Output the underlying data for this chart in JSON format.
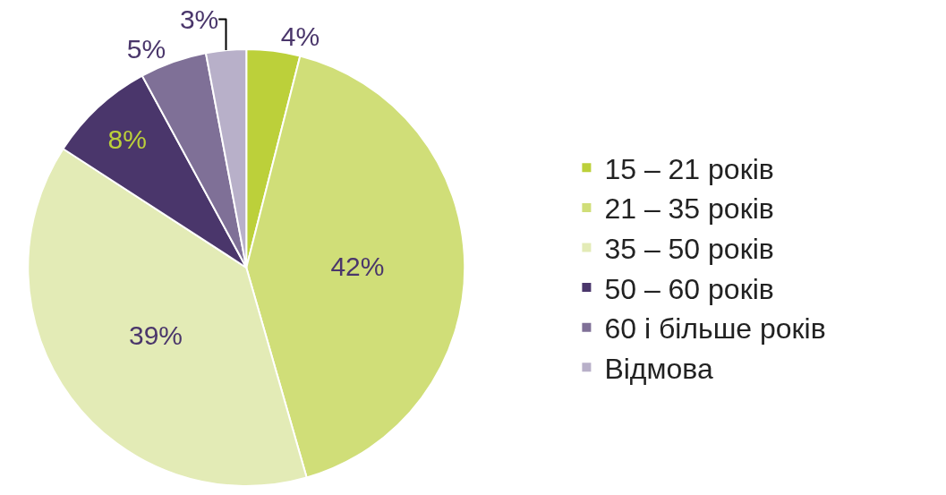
{
  "chart_data": {
    "type": "pie",
    "categories": [
      "15 – 21 років",
      "21 – 35 років",
      "35 – 50 років",
      "50 – 60 років",
      "60 і більше років",
      "Відмова"
    ],
    "values": [
      4,
      42,
      39,
      8,
      5,
      3
    ],
    "value_labels": [
      "4%",
      "42%",
      "39%",
      "8%",
      "5%",
      "3%"
    ],
    "colors": [
      "#bcd03a",
      "#d0de78",
      "#e3ebb6",
      "#4a366b",
      "#7f7097",
      "#b8b0c9"
    ],
    "legend": "right"
  }
}
